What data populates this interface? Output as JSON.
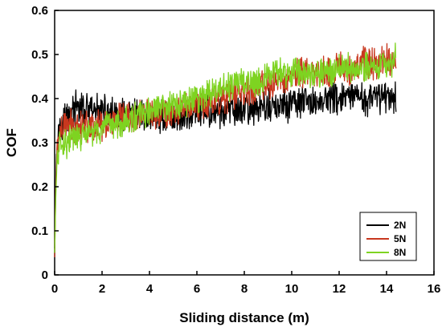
{
  "chart_data": {
    "type": "line",
    "title": "",
    "xlabel": "Sliding distance (m)",
    "ylabel": "COF",
    "xlim": [
      0,
      16
    ],
    "ylim": [
      0,
      0.6
    ],
    "xticks": [
      "0",
      "2",
      "4",
      "6",
      "8",
      "10",
      "12",
      "14",
      "16"
    ],
    "yticks": [
      "0",
      "0.1",
      "0.2",
      "0.3",
      "0.4",
      "0.5",
      "0.6"
    ],
    "grid": false,
    "legend_position": "bottom-right",
    "series": [
      {
        "name": "2N",
        "color": "#000000",
        "x": [
          0,
          0.05,
          0.1,
          0.2,
          0.3,
          0.5,
          0.7,
          1,
          1.5,
          2,
          2.5,
          3,
          3.5,
          4,
          4.5,
          5,
          5.5,
          6,
          6.5,
          7,
          7.5,
          8,
          8.5,
          9,
          9.5,
          10,
          10.5,
          11,
          11.5,
          12,
          12.5,
          13,
          13.5,
          14,
          14.4
        ],
        "y": [
          0.06,
          0.22,
          0.31,
          0.34,
          0.35,
          0.36,
          0.37,
          0.38,
          0.37,
          0.37,
          0.36,
          0.36,
          0.36,
          0.36,
          0.36,
          0.36,
          0.36,
          0.37,
          0.37,
          0.37,
          0.37,
          0.38,
          0.38,
          0.38,
          0.38,
          0.39,
          0.39,
          0.39,
          0.4,
          0.4,
          0.4,
          0.4,
          0.4,
          0.41,
          0.4
        ]
      },
      {
        "name": "5N",
        "color": "#c8371e",
        "x": [
          0,
          0.05,
          0.1,
          0.2,
          0.3,
          0.5,
          0.7,
          1,
          1.5,
          2,
          2.5,
          3,
          3.5,
          4,
          4.5,
          5,
          5.5,
          6,
          6.5,
          7,
          7.5,
          8,
          8.5,
          9,
          9.5,
          10,
          10.5,
          11,
          11.5,
          12,
          12.5,
          13,
          13.5,
          14,
          14.4
        ],
        "y": [
          0.04,
          0.2,
          0.29,
          0.32,
          0.33,
          0.34,
          0.34,
          0.34,
          0.34,
          0.34,
          0.35,
          0.35,
          0.36,
          0.37,
          0.37,
          0.37,
          0.38,
          0.39,
          0.39,
          0.4,
          0.41,
          0.42,
          0.42,
          0.43,
          0.44,
          0.45,
          0.46,
          0.46,
          0.46,
          0.47,
          0.47,
          0.48,
          0.48,
          0.49,
          0.48
        ]
      },
      {
        "name": "8N",
        "color": "#7ed321",
        "x": [
          0,
          0.05,
          0.1,
          0.2,
          0.3,
          0.5,
          0.7,
          1,
          1.5,
          2,
          2.5,
          3,
          3.5,
          4,
          4.5,
          5,
          5.5,
          6,
          6.5,
          7,
          7.5,
          8,
          8.5,
          9,
          9.5,
          10,
          10.5,
          11,
          11.5,
          12,
          12.5,
          13,
          13.5,
          14,
          14.4
        ],
        "y": [
          0.05,
          0.18,
          0.26,
          0.29,
          0.3,
          0.3,
          0.31,
          0.31,
          0.32,
          0.33,
          0.34,
          0.35,
          0.36,
          0.37,
          0.38,
          0.38,
          0.39,
          0.4,
          0.41,
          0.42,
          0.43,
          0.44,
          0.44,
          0.45,
          0.46,
          0.46,
          0.46,
          0.46,
          0.46,
          0.47,
          0.47,
          0.47,
          0.47,
          0.48,
          0.49
        ]
      }
    ]
  }
}
